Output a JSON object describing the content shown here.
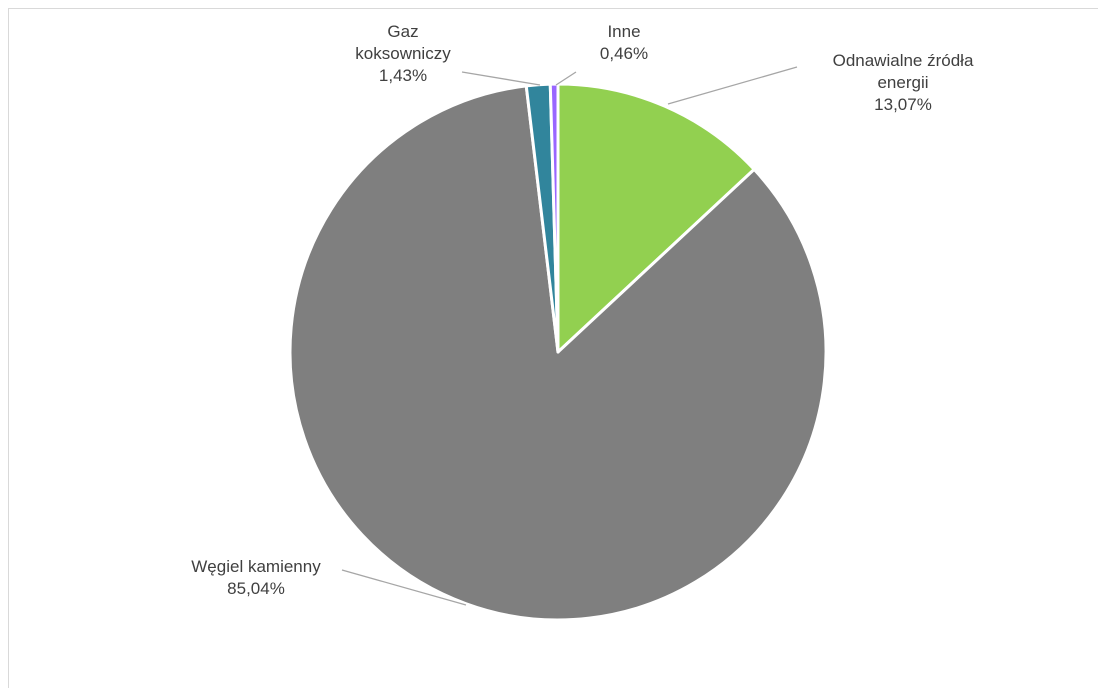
{
  "chart_data": {
    "type": "pie",
    "slices": [
      {
        "name": "Odnawialne źródła energii",
        "label_lines": [
          "Odnawialne źródła",
          "energii"
        ],
        "value": 13.07,
        "value_label": "13,07%",
        "color": "#92d050"
      },
      {
        "name": "Węgiel kamienny",
        "label_lines": [
          "Węgiel kamienny"
        ],
        "value": 85.04,
        "value_label": "85,04%",
        "color": "#7f7f7f"
      },
      {
        "name": "Gaz koksowniczy",
        "label_lines": [
          "Gaz",
          "koksowniczy"
        ],
        "value": 1.43,
        "value_label": "1,43%",
        "color": "#31859c"
      },
      {
        "name": "Inne",
        "label_lines": [
          "Inne"
        ],
        "value": 0.46,
        "value_label": "0,46%",
        "color": "#9966ff"
      }
    ],
    "start_angle_deg": 0,
    "direction": "clockwise",
    "slice_border_color": "#ffffff",
    "leader_line_color": "#a6a6a6"
  }
}
